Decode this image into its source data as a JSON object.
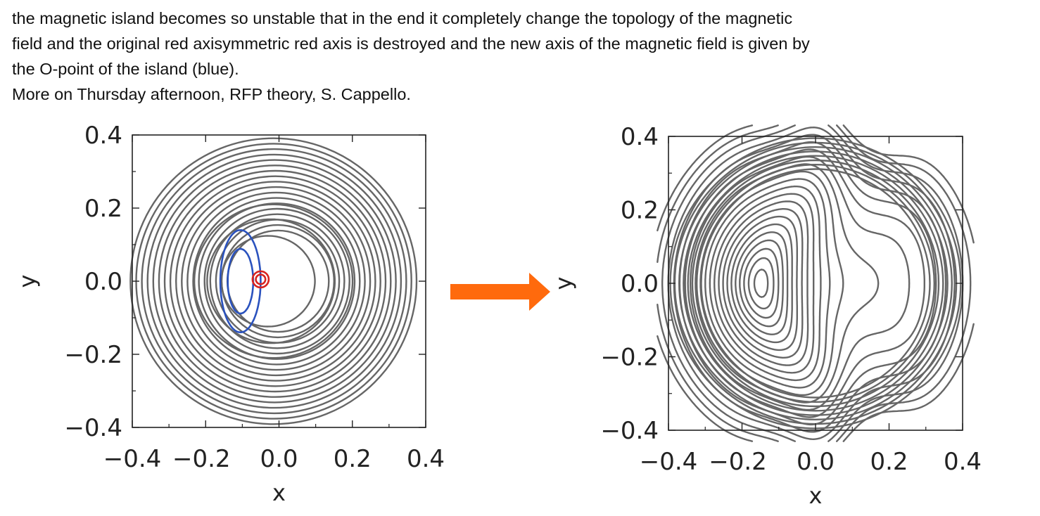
{
  "text": {
    "lines": [
      "the magnetic island becomes so unstable that in the end it completely change the topology of the magnetic",
      "field and the original red axisymmetric red axis is destroyed and the new axis of the magnetic field is given by",
      "the O-point of the island  (blue).",
      "More on Thursday afternoon, RFP theory, S. Cappello."
    ]
  },
  "chart_data": [
    {
      "type": "contour",
      "xlabel": "x",
      "ylabel": "y",
      "xlim": [
        -0.4,
        0.4
      ],
      "ylim": [
        -0.4,
        0.4
      ],
      "x_ticks": [
        "−0.4",
        "−0.2",
        "0.0",
        "0.2",
        "0.4"
      ],
      "y_ticks": [
        "0.4",
        "0.2",
        "0.0",
        "−0.2",
        "−0.4"
      ],
      "colors": {
        "contours": "#666666",
        "island": "#2a52be",
        "axis": "#d9231f"
      }
    },
    {
      "type": "contour",
      "xlabel": "x",
      "ylabel": "y",
      "xlim": [
        -0.4,
        0.4
      ],
      "ylim": [
        -0.4,
        0.4
      ],
      "x_ticks": [
        "−0.4",
        "−0.2",
        "0.0",
        "0.2",
        "0.4"
      ],
      "y_ticks": [
        "0.4",
        "0.2",
        "0.0",
        "−0.2",
        "−0.4"
      ],
      "colors": {
        "contours": "#666666"
      }
    }
  ],
  "arrow": {
    "color": "#ff6a0d"
  }
}
